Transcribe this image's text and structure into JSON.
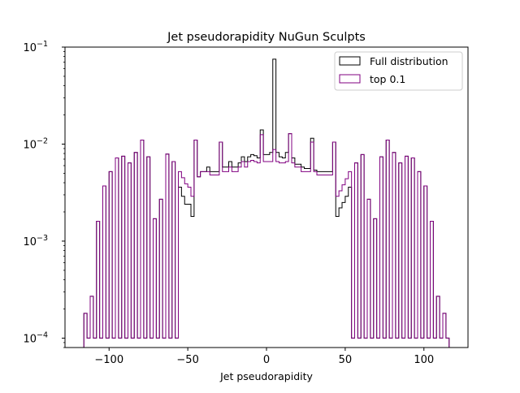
{
  "chart_data": {
    "type": "histogram",
    "title": "Jet pseudorapidity NuGun Sculpts",
    "xlabel": "Jet pseudorapidity",
    "ylabel": "",
    "xlim": [
      -128,
      128
    ],
    "ylim": [
      8e-05,
      0.1
    ],
    "yscale": "log",
    "xticks": [
      -100,
      -50,
      0,
      50,
      100
    ],
    "xtick_labels": [
      "−100",
      "−50",
      "0",
      "50",
      "100"
    ],
    "yticks": [
      0.0001,
      0.001,
      0.01,
      0.1
    ],
    "ytick_labels": [
      "10",
      "10",
      "10",
      "10"
    ],
    "ytick_exponents": [
      "−4",
      "−3",
      "−2",
      "−1"
    ],
    "legend_position": "upper-right",
    "bin_edges_range": [
      -116,
      116
    ],
    "bin_width": 2,
    "series": [
      {
        "name": "Full distribution",
        "color": "#000000",
        "values": [
          0.00018,
          0.0001,
          0.00027,
          0.0001,
          0.0016,
          0.0001,
          0.0037,
          0.0001,
          0.0052,
          0.0001,
          0.0072,
          0.0001,
          0.0075,
          0.0001,
          0.0064,
          0.0001,
          0.0082,
          0.0001,
          0.011,
          0.0001,
          0.0074,
          0.0001,
          0.0017,
          0.0001,
          0.0027,
          0.0001,
          0.0079,
          0.0001,
          0.0066,
          0.0001,
          0.0036,
          0.0029,
          0.0024,
          0.0024,
          0.0018,
          0.011,
          0.0046,
          0.0052,
          0.0052,
          0.0058,
          0.0052,
          0.0052,
          0.0052,
          0.0105,
          0.0058,
          0.0058,
          0.0066,
          0.0058,
          0.0058,
          0.0064,
          0.0074,
          0.0066,
          0.0074,
          0.0078,
          0.0076,
          0.0072,
          0.014,
          0.0078,
          0.0078,
          0.0082,
          0.075,
          0.0082,
          0.0074,
          0.0072,
          0.0082,
          0.0128,
          0.0072,
          0.0062,
          0.0062,
          0.0058,
          0.0056,
          0.0056,
          0.0115,
          0.0054,
          0.0052,
          0.0052,
          0.0052,
          0.0052,
          0.0052,
          0.0105,
          0.0018,
          0.0022,
          0.0025,
          0.0029,
          0.0036,
          0.0001,
          0.0064,
          0.0001,
          0.0078,
          0.0001,
          0.0027,
          0.0001,
          0.0017,
          0.0001,
          0.0074,
          0.0001,
          0.011,
          0.0001,
          0.0082,
          0.0001,
          0.0064,
          0.0001,
          0.0075,
          0.0001,
          0.0072,
          0.0001,
          0.0052,
          0.0001,
          0.0037,
          0.0001,
          0.0016,
          0.0001,
          0.00027,
          0.0001,
          0.00018,
          0.0001
        ]
      },
      {
        "name": "top 0.1",
        "color": "#800080",
        "values": [
          0.00018,
          0.0001,
          0.00027,
          0.0001,
          0.0016,
          0.0001,
          0.0037,
          0.0001,
          0.0052,
          0.0001,
          0.0072,
          0.0001,
          0.0075,
          0.0001,
          0.0064,
          0.0001,
          0.0082,
          0.0001,
          0.011,
          0.0001,
          0.0074,
          0.0001,
          0.0017,
          0.0001,
          0.0027,
          0.0001,
          0.0079,
          0.0001,
          0.0066,
          0.0001,
          0.0052,
          0.0045,
          0.0039,
          0.0036,
          0.0029,
          0.011,
          0.0046,
          0.0052,
          0.0052,
          0.0052,
          0.0048,
          0.0048,
          0.0048,
          0.0105,
          0.0052,
          0.0052,
          0.0058,
          0.0052,
          0.0052,
          0.0058,
          0.0066,
          0.0058,
          0.0066,
          0.0068,
          0.0066,
          0.0064,
          0.0125,
          0.0066,
          0.0066,
          0.0066,
          0.0088,
          0.0066,
          0.0064,
          0.0064,
          0.0066,
          0.0128,
          0.0064,
          0.0058,
          0.0058,
          0.0052,
          0.0052,
          0.0052,
          0.0105,
          0.0052,
          0.0048,
          0.0048,
          0.0048,
          0.0048,
          0.0048,
          0.0105,
          0.0029,
          0.0033,
          0.0038,
          0.0044,
          0.0052,
          0.0001,
          0.0064,
          0.0001,
          0.0078,
          0.0001,
          0.0027,
          0.0001,
          0.0017,
          0.0001,
          0.0074,
          0.0001,
          0.011,
          0.0001,
          0.0082,
          0.0001,
          0.0064,
          0.0001,
          0.0075,
          0.0001,
          0.0072,
          0.0001,
          0.0052,
          0.0001,
          0.0037,
          0.0001,
          0.0016,
          0.0001,
          0.00027,
          0.0001,
          0.00018,
          0.0001
        ]
      }
    ]
  }
}
